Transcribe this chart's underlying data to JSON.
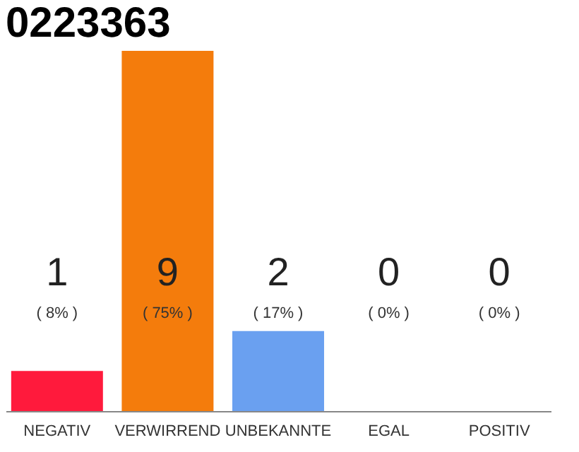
{
  "chart_data": {
    "type": "bar",
    "title": "0223363",
    "categories": [
      "NEGATIV",
      "VERWIRREND",
      "UNBEKANNTE",
      "EGAL",
      "POSITIV"
    ],
    "values": [
      1,
      9,
      2,
      0,
      0
    ],
    "colors": [
      "#ff1a3c",
      "#f47c0c",
      "#6aa0f0",
      "#cccccc",
      "#cccccc"
    ],
    "data_labels": true,
    "annotations": [
      "( 8% )",
      "( 75% )",
      "( 17% )",
      "( 0% )",
      "( 0% )"
    ],
    "grid": false
  }
}
